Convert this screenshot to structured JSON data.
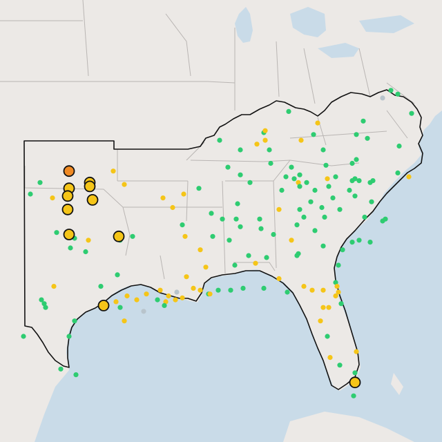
{
  "map": {
    "colors": {
      "water": "#c9dbe8",
      "land": "#ece9e6",
      "border": "#b9b5b3",
      "region_outline": "#111111",
      "green": "#2ecc71",
      "yellow": "#f5c518",
      "orange": "#f08a24",
      "gray": "#b8c4cc",
      "marker_outline": "#111111"
    },
    "legend": [],
    "stations": [
      {
        "lon": -101.0,
        "lat": 36.6,
        "status": "orange",
        "large": true
      },
      {
        "lon": -99.5,
        "lat": 36.0,
        "status": "yellow",
        "large": true
      },
      {
        "lon": -99.5,
        "lat": 35.8,
        "status": "yellow",
        "large": true
      },
      {
        "lon": -101.0,
        "lat": 35.7,
        "status": "yellow",
        "large": true
      },
      {
        "lon": -101.1,
        "lat": 35.3,
        "status": "yellow",
        "large": true
      },
      {
        "lon": -99.3,
        "lat": 35.1,
        "status": "yellow",
        "large": true
      },
      {
        "lon": -101.1,
        "lat": 34.6,
        "status": "yellow",
        "large": true
      },
      {
        "lon": -101.0,
        "lat": 33.3,
        "status": "yellow",
        "large": true
      },
      {
        "lon": -97.4,
        "lat": 33.2,
        "status": "yellow",
        "large": true
      },
      {
        "lon": -98.5,
        "lat": 29.6,
        "status": "yellow",
        "large": true
      },
      {
        "lon": -80.3,
        "lat": 25.6,
        "status": "yellow",
        "large": true
      },
      {
        "lon": -103.1,
        "lat": 36.0,
        "status": "green"
      },
      {
        "lon": -103.8,
        "lat": 35.4,
        "status": "green"
      },
      {
        "lon": -102.2,
        "lat": 35.2,
        "status": "yellow"
      },
      {
        "lon": -97.8,
        "lat": 36.6,
        "status": "yellow"
      },
      {
        "lon": -97.0,
        "lat": 35.9,
        "status": "yellow"
      },
      {
        "lon": -94.2,
        "lat": 35.2,
        "status": "yellow"
      },
      {
        "lon": -101.9,
        "lat": 33.4,
        "status": "green"
      },
      {
        "lon": -100.6,
        "lat": 33.1,
        "status": "green"
      },
      {
        "lon": -99.6,
        "lat": 33.0,
        "status": "yellow"
      },
      {
        "lon": -100.9,
        "lat": 32.6,
        "status": "green"
      },
      {
        "lon": -99.8,
        "lat": 32.4,
        "status": "green"
      },
      {
        "lon": -97.3,
        "lat": 33.0,
        "status": "green"
      },
      {
        "lon": -102.1,
        "lat": 30.6,
        "status": "yellow"
      },
      {
        "lon": -98.7,
        "lat": 30.6,
        "status": "green"
      },
      {
        "lon": -103.0,
        "lat": 29.9,
        "status": "green"
      },
      {
        "lon": -102.8,
        "lat": 29.7,
        "status": "green"
      },
      {
        "lon": -102.7,
        "lat": 29.5,
        "status": "green"
      },
      {
        "lon": -100.6,
        "lat": 28.8,
        "status": "green"
      },
      {
        "lon": -101.0,
        "lat": 28.0,
        "status": "green"
      },
      {
        "lon": -104.3,
        "lat": 28.0,
        "status": "green"
      },
      {
        "lon": -101.6,
        "lat": 26.3,
        "status": "green"
      },
      {
        "lon": -100.5,
        "lat": 26.0,
        "status": "green"
      },
      {
        "lon": -97.6,
        "lat": 29.8,
        "status": "yellow"
      },
      {
        "lon": -96.8,
        "lat": 30.1,
        "status": "yellow"
      },
      {
        "lon": -96.1,
        "lat": 29.9,
        "status": "yellow"
      },
      {
        "lon": -95.4,
        "lat": 30.2,
        "status": "yellow"
      },
      {
        "lon": -94.4,
        "lat": 30.4,
        "status": "yellow"
      },
      {
        "lon": -93.8,
        "lat": 30.1,
        "status": "yellow"
      },
      {
        "lon": -93.2,
        "lat": 30.3,
        "status": "gray"
      },
      {
        "lon": -94.0,
        "lat": 29.8,
        "status": "yellow"
      },
      {
        "lon": -93.3,
        "lat": 29.9,
        "status": "yellow"
      },
      {
        "lon": -92.8,
        "lat": 30.0,
        "status": "yellow"
      },
      {
        "lon": -92.0,
        "lat": 30.5,
        "status": "yellow"
      },
      {
        "lon": -91.5,
        "lat": 30.4,
        "status": "yellow"
      },
      {
        "lon": -90.9,
        "lat": 30.2,
        "status": "green"
      },
      {
        "lon": -90.8,
        "lat": 30.2,
        "status": "yellow"
      },
      {
        "lon": -90.2,
        "lat": 30.4,
        "status": "green"
      },
      {
        "lon": -89.3,
        "lat": 30.4,
        "status": "green"
      },
      {
        "lon": -88.4,
        "lat": 30.5,
        "status": "green"
      },
      {
        "lon": -92.5,
        "lat": 31.1,
        "status": "yellow"
      },
      {
        "lon": -91.1,
        "lat": 31.6,
        "status": "yellow"
      },
      {
        "lon": -89.0,
        "lat": 31.7,
        "status": "green"
      },
      {
        "lon": -87.5,
        "lat": 31.8,
        "status": "yellow"
      },
      {
        "lon": -86.9,
        "lat": 30.5,
        "status": "green"
      },
      {
        "lon": -85.8,
        "lat": 31.0,
        "status": "yellow"
      },
      {
        "lon": -85.2,
        "lat": 30.3,
        "status": "green"
      },
      {
        "lon": -84.0,
        "lat": 30.6,
        "status": "yellow"
      },
      {
        "lon": -83.4,
        "lat": 30.4,
        "status": "yellow"
      },
      {
        "lon": -82.6,
        "lat": 30.4,
        "status": "yellow"
      },
      {
        "lon": -81.7,
        "lat": 30.8,
        "status": "green"
      },
      {
        "lon": -81.6,
        "lat": 30.6,
        "status": "yellow"
      },
      {
        "lon": -81.5,
        "lat": 30.3,
        "status": "yellow"
      },
      {
        "lon": -81.7,
        "lat": 30.1,
        "status": "yellow"
      },
      {
        "lon": -82.6,
        "lat": 29.5,
        "status": "yellow"
      },
      {
        "lon": -82.2,
        "lat": 29.5,
        "status": "yellow"
      },
      {
        "lon": -81.3,
        "lat": 29.7,
        "status": "green"
      },
      {
        "lon": -82.8,
        "lat": 28.8,
        "status": "yellow"
      },
      {
        "lon": -82.3,
        "lat": 28.0,
        "status": "green"
      },
      {
        "lon": -82.1,
        "lat": 26.9,
        "status": "yellow"
      },
      {
        "lon": -81.4,
        "lat": 26.5,
        "status": "green"
      },
      {
        "lon": -80.2,
        "lat": 27.2,
        "status": "yellow"
      },
      {
        "lon": -80.3,
        "lat": 26.1,
        "status": "green"
      },
      {
        "lon": -80.4,
        "lat": 24.9,
        "status": "green"
      },
      {
        "lon": -93.5,
        "lat": 34.7,
        "status": "yellow"
      },
      {
        "lon": -92.7,
        "lat": 35.4,
        "status": "yellow"
      },
      {
        "lon": -91.6,
        "lat": 35.7,
        "status": "green"
      },
      {
        "lon": -92.6,
        "lat": 33.2,
        "status": "yellow"
      },
      {
        "lon": -91.5,
        "lat": 32.5,
        "status": "yellow"
      },
      {
        "lon": -90.6,
        "lat": 33.2,
        "status": "green"
      },
      {
        "lon": -89.4,
        "lat": 33.0,
        "status": "green"
      },
      {
        "lon": -89.9,
        "lat": 34.1,
        "status": "green"
      },
      {
        "lon": -88.9,
        "lat": 34.1,
        "status": "green"
      },
      {
        "lon": -88.8,
        "lat": 34.9,
        "status": "green"
      },
      {
        "lon": -87.2,
        "lat": 34.1,
        "status": "green"
      },
      {
        "lon": -87.1,
        "lat": 33.6,
        "status": "green"
      },
      {
        "lon": -88.6,
        "lat": 33.7,
        "status": "green"
      },
      {
        "lon": -88.0,
        "lat": 32.2,
        "status": "green"
      },
      {
        "lon": -86.7,
        "lat": 32.1,
        "status": "green"
      },
      {
        "lon": -86.2,
        "lat": 33.3,
        "status": "green"
      },
      {
        "lon": -85.8,
        "lat": 34.6,
        "status": "yellow"
      },
      {
        "lon": -87.9,
        "lat": 36.0,
        "status": "green"
      },
      {
        "lon": -89.5,
        "lat": 36.8,
        "status": "green"
      },
      {
        "lon": -90.1,
        "lat": 38.2,
        "status": "green"
      },
      {
        "lon": -88.6,
        "lat": 37.7,
        "status": "green"
      },
      {
        "lon": -87.4,
        "lat": 38.0,
        "status": "yellow"
      },
      {
        "lon": -86.9,
        "lat": 38.6,
        "status": "green"
      },
      {
        "lon": -86.5,
        "lat": 37.7,
        "status": "green"
      },
      {
        "lon": -86.8,
        "lat": 38.2,
        "status": "yellow"
      },
      {
        "lon": -86.8,
        "lat": 38.7,
        "status": "yellow"
      },
      {
        "lon": -85.1,
        "lat": 39.7,
        "status": "green"
      },
      {
        "lon": -83.0,
        "lat": 39.1,
        "status": "yellow"
      },
      {
        "lon": -84.2,
        "lat": 38.2,
        "status": "yellow"
      },
      {
        "lon": -83.3,
        "lat": 38.5,
        "status": "green"
      },
      {
        "lon": -82.6,
        "lat": 37.7,
        "status": "green"
      },
      {
        "lon": -82.4,
        "lat": 36.9,
        "status": "green"
      },
      {
        "lon": -84.3,
        "lat": 36.4,
        "status": "green"
      },
      {
        "lon": -84.7,
        "lat": 36.2,
        "status": "green"
      },
      {
        "lon": -84.9,
        "lat": 36.8,
        "status": "green"
      },
      {
        "lon": -85.3,
        "lat": 36.3,
        "status": "green"
      },
      {
        "lon": -84.4,
        "lat": 36.0,
        "status": "yellow"
      },
      {
        "lon": -84.3,
        "lat": 35.8,
        "status": "green"
      },
      {
        "lon": -83.8,
        "lat": 36.0,
        "status": "green"
      },
      {
        "lon": -83.2,
        "lat": 35.6,
        "status": "green"
      },
      {
        "lon": -82.3,
        "lat": 36.2,
        "status": "yellow"
      },
      {
        "lon": -81.7,
        "lat": 36.3,
        "status": "green"
      },
      {
        "lon": -82.2,
        "lat": 35.8,
        "status": "green"
      },
      {
        "lon": -83.5,
        "lat": 35.0,
        "status": "green"
      },
      {
        "lon": -80.5,
        "lat": 36.1,
        "status": "green"
      },
      {
        "lon": -80.3,
        "lat": 36.2,
        "status": "green"
      },
      {
        "lon": -80.0,
        "lat": 36.1,
        "status": "green"
      },
      {
        "lon": -79.2,
        "lat": 36.0,
        "status": "green"
      },
      {
        "lon": -79.0,
        "lat": 36.1,
        "status": "green"
      },
      {
        "lon": -77.2,
        "lat": 36.5,
        "status": "green"
      },
      {
        "lon": -76.4,
        "lat": 36.3,
        "status": "yellow"
      },
      {
        "lon": -80.7,
        "lat": 35.6,
        "status": "green"
      },
      {
        "lon": -80.3,
        "lat": 35.3,
        "status": "green"
      },
      {
        "lon": -81.9,
        "lat": 35.2,
        "status": "green"
      },
      {
        "lon": -81.4,
        "lat": 34.6,
        "status": "green"
      },
      {
        "lon": -82.5,
        "lat": 34.2,
        "status": "green"
      },
      {
        "lon": -82.7,
        "lat": 34.7,
        "status": "green"
      },
      {
        "lon": -79.1,
        "lat": 35.0,
        "status": "green"
      },
      {
        "lon": -78.3,
        "lat": 34.0,
        "status": "green"
      },
      {
        "lon": -78.1,
        "lat": 34.1,
        "status": "green"
      },
      {
        "lon": -79.6,
        "lat": 34.2,
        "status": "green"
      },
      {
        "lon": -80.5,
        "lat": 37.0,
        "status": "green"
      },
      {
        "lon": -80.2,
        "lat": 37.2,
        "status": "green"
      },
      {
        "lon": -80.2,
        "lat": 38.5,
        "status": "green"
      },
      {
        "lon": -79.7,
        "lat": 39.2,
        "status": "green"
      },
      {
        "lon": -77.7,
        "lat": 40.8,
        "status": "green"
      },
      {
        "lon": -77.2,
        "lat": 40.6,
        "status": "green"
      },
      {
        "lon": -76.2,
        "lat": 39.6,
        "status": "green"
      },
      {
        "lon": -77.1,
        "lat": 37.9,
        "status": "green"
      },
      {
        "lon": -79.4,
        "lat": 38.3,
        "status": "green"
      },
      {
        "lon": -78.3,
        "lat": 40.4,
        "status": "gray"
      },
      {
        "lon": -85.6,
        "lat": 35.6,
        "status": "green"
      },
      {
        "lon": -86.4,
        "lat": 37.0,
        "status": "green"
      },
      {
        "lon": -88.6,
        "lat": 36.4,
        "status": "green"
      },
      {
        "lon": -84.9,
        "lat": 33.0,
        "status": "yellow"
      },
      {
        "lon": -84.5,
        "lat": 33.8,
        "status": "green"
      },
      {
        "lon": -84.3,
        "lat": 34.6,
        "status": "green"
      },
      {
        "lon": -84.0,
        "lat": 34.2,
        "status": "green"
      },
      {
        "lon": -83.2,
        "lat": 33.5,
        "status": "green"
      },
      {
        "lon": -84.4,
        "lat": 32.3,
        "status": "green"
      },
      {
        "lon": -84.5,
        "lat": 32.2,
        "status": "green"
      },
      {
        "lon": -82.6,
        "lat": 32.7,
        "status": "green"
      },
      {
        "lon": -81.5,
        "lat": 31.7,
        "status": "green"
      },
      {
        "lon": -81.2,
        "lat": 32.5,
        "status": "green"
      },
      {
        "lon": -80.5,
        "lat": 32.9,
        "status": "green"
      },
      {
        "lon": -80.0,
        "lat": 33.0,
        "status": "green"
      },
      {
        "lon": -79.2,
        "lat": 32.9,
        "status": "green"
      },
      {
        "lon": -92.8,
        "lat": 33.8,
        "status": "green"
      },
      {
        "lon": -90.7,
        "lat": 34.4,
        "status": "green"
      },
      {
        "lon": -96.4,
        "lat": 33.2,
        "status": "green"
      },
      {
        "lon": -94.6,
        "lat": 29.9,
        "status": "green"
      },
      {
        "lon": -94.1,
        "lat": 29.6,
        "status": "green"
      },
      {
        "lon": -97.3,
        "lat": 29.5,
        "status": "green"
      },
      {
        "lon": -97.0,
        "lat": 28.8,
        "status": "yellow"
      },
      {
        "lon": -95.6,
        "lat": 29.3,
        "status": "gray"
      },
      {
        "lon": -97.5,
        "lat": 31.2,
        "status": "green"
      }
    ]
  }
}
